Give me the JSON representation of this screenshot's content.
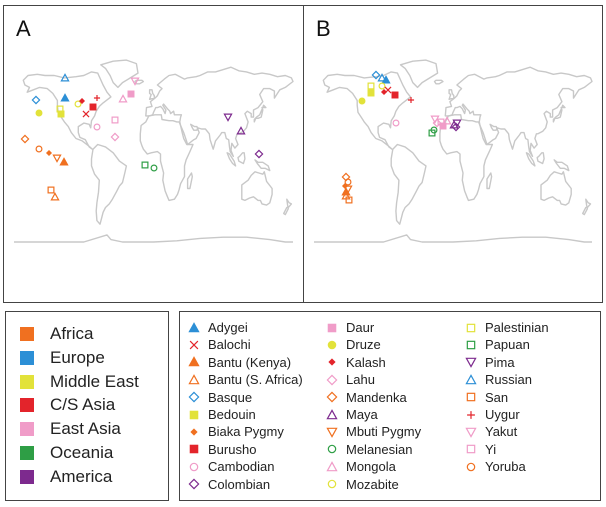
{
  "panels": [
    {
      "label": "A"
    },
    {
      "label": "B"
    }
  ],
  "regions": [
    {
      "label": "Africa",
      "color": "#F07020"
    },
    {
      "label": "Europe",
      "color": "#2C8FD6"
    },
    {
      "label": "Middle East",
      "color": "#E2E23A"
    },
    {
      "label": "C/S Asia",
      "color": "#E3242B"
    },
    {
      "label": "East Asia",
      "color": "#F09CC8"
    },
    {
      "label": "Oceania",
      "color": "#2E9E45"
    },
    {
      "label": "America",
      "color": "#7D2A8E"
    }
  ],
  "populations": [
    {
      "label": "Adygei",
      "region": "Europe",
      "marker": "triangle-up",
      "filled": true
    },
    {
      "label": "Balochi",
      "region": "C/S Asia",
      "marker": "cross-x",
      "filled": false
    },
    {
      "label": "Bantu (Kenya)",
      "region": "Africa",
      "marker": "triangle-up",
      "filled": true
    },
    {
      "label": "Bantu (S. Africa)",
      "region": "Africa",
      "marker": "triangle-up",
      "filled": false
    },
    {
      "label": "Basque",
      "region": "Europe",
      "marker": "diamond",
      "filled": false
    },
    {
      "label": "Bedouin",
      "region": "Middle East",
      "marker": "square",
      "filled": true
    },
    {
      "label": "Biaka Pygmy",
      "region": "Africa",
      "marker": "diamond-small",
      "filled": true
    },
    {
      "label": "Burusho",
      "region": "C/S Asia",
      "marker": "square",
      "filled": true
    },
    {
      "label": "Cambodian",
      "region": "East Asia",
      "marker": "circle",
      "filled": false
    },
    {
      "label": "Colombian",
      "region": "America",
      "marker": "diamond",
      "filled": false
    },
    {
      "label": "Daur",
      "region": "East Asia",
      "marker": "square",
      "filled": true
    },
    {
      "label": "Druze",
      "region": "Middle East",
      "marker": "circle",
      "filled": true
    },
    {
      "label": "Kalash",
      "region": "C/S Asia",
      "marker": "diamond-small",
      "filled": true
    },
    {
      "label": "Lahu",
      "region": "East Asia",
      "marker": "diamond",
      "filled": false
    },
    {
      "label": "Mandenka",
      "region": "Africa",
      "marker": "diamond",
      "filled": false
    },
    {
      "label": "Maya",
      "region": "America",
      "marker": "triangle-up",
      "filled": false
    },
    {
      "label": "Mbuti Pygmy",
      "region": "Africa",
      "marker": "triangle-down",
      "filled": false
    },
    {
      "label": "Melanesian",
      "region": "Oceania",
      "marker": "circle",
      "filled": false
    },
    {
      "label": "Mongola",
      "region": "East Asia",
      "marker": "triangle-up",
      "filled": false
    },
    {
      "label": "Mozabite",
      "region": "Middle East",
      "marker": "circle",
      "filled": false
    },
    {
      "label": "Palestinian",
      "region": "Middle East",
      "marker": "square",
      "filled": false
    },
    {
      "label": "Papuan",
      "region": "Oceania",
      "marker": "square",
      "filled": false
    },
    {
      "label": "Pima",
      "region": "America",
      "marker": "triangle-down",
      "filled": false
    },
    {
      "label": "Russian",
      "region": "Europe",
      "marker": "triangle-up",
      "filled": false
    },
    {
      "label": "San",
      "region": "Africa",
      "marker": "square",
      "filled": false
    },
    {
      "label": "Uygur",
      "region": "C/S Asia",
      "marker": "plus",
      "filled": false
    },
    {
      "label": "Yakut",
      "region": "East Asia",
      "marker": "triangle-down",
      "filled": false
    },
    {
      "label": "Yi",
      "region": "East Asia",
      "marker": "square",
      "filled": false
    },
    {
      "label": "Yoruba",
      "region": "Africa",
      "marker": "circle",
      "filled": false
    }
  ]
}
